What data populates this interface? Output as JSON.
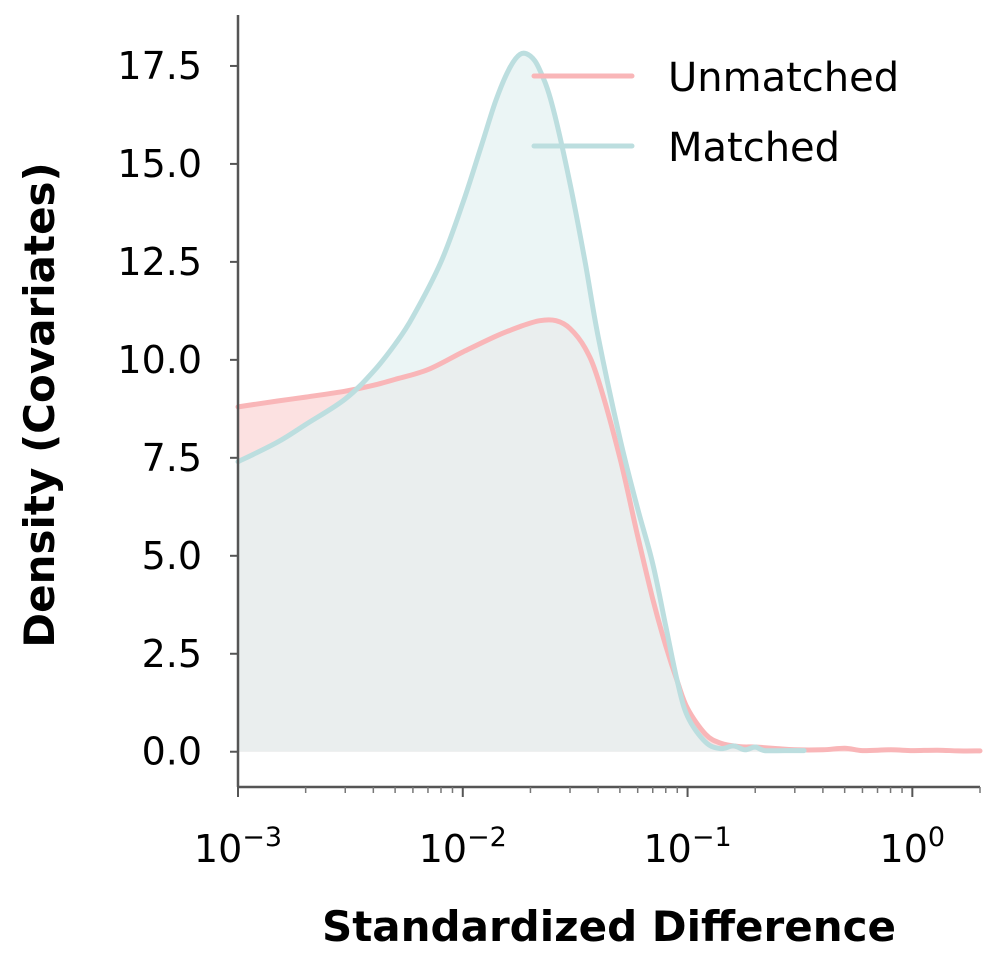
{
  "chart_data": {
    "type": "area",
    "xlabel": "Standardized Difference",
    "ylabel": "Density (Covariates)",
    "x_scale": "log",
    "xlim": [
      0.001,
      2.0
    ],
    "ylim": [
      -0.9,
      18.8
    ],
    "x_ticks": [
      {
        "value": 0.001,
        "base": "10",
        "exp": "−3"
      },
      {
        "value": 0.01,
        "base": "10",
        "exp": "−2"
      },
      {
        "value": 0.1,
        "base": "10",
        "exp": "−1"
      },
      {
        "value": 1,
        "base": "10",
        "exp": "0"
      }
    ],
    "y_ticks": [
      {
        "value": 0,
        "label": "0.0"
      },
      {
        "value": 2.5,
        "label": "2.5"
      },
      {
        "value": 5,
        "label": "5.0"
      },
      {
        "value": 7.5,
        "label": "7.5"
      },
      {
        "value": 10,
        "label": "10.0"
      },
      {
        "value": 12.5,
        "label": "12.5"
      },
      {
        "value": 15,
        "label": "15.0"
      },
      {
        "value": 17.5,
        "label": "17.5"
      }
    ],
    "grid": false,
    "legend_position": "top-right",
    "series": [
      {
        "name": "Unmatched",
        "color": "#f9b6b8",
        "fill_color": "#fbdcdc",
        "points": [
          [
            0.001,
            8.8
          ],
          [
            0.0015,
            8.95
          ],
          [
            0.002,
            9.05
          ],
          [
            0.003,
            9.2
          ],
          [
            0.004,
            9.35
          ],
          [
            0.005,
            9.5
          ],
          [
            0.007,
            9.75
          ],
          [
            0.01,
            10.2
          ],
          [
            0.014,
            10.6
          ],
          [
            0.018,
            10.85
          ],
          [
            0.022,
            11.0
          ],
          [
            0.026,
            11.0
          ],
          [
            0.03,
            10.8
          ],
          [
            0.035,
            10.3
          ],
          [
            0.04,
            9.5
          ],
          [
            0.05,
            7.5
          ],
          [
            0.06,
            5.5
          ],
          [
            0.07,
            3.9
          ],
          [
            0.08,
            2.7
          ],
          [
            0.09,
            1.8
          ],
          [
            0.1,
            1.1
          ],
          [
            0.12,
            0.45
          ],
          [
            0.14,
            0.22
          ],
          [
            0.17,
            0.13
          ],
          [
            0.2,
            0.12
          ],
          [
            0.25,
            0.08
          ],
          [
            0.3,
            0.05
          ],
          [
            0.4,
            0.05
          ],
          [
            0.5,
            0.09
          ],
          [
            0.6,
            0.03
          ],
          [
            0.8,
            0.05
          ],
          [
            1.0,
            0.03
          ],
          [
            1.3,
            0.04
          ],
          [
            1.6,
            0.02
          ],
          [
            2.0,
            0.02
          ]
        ]
      },
      {
        "name": "Matched",
        "color": "#bcdedf",
        "fill_color": "#e4f1f1",
        "points": [
          [
            0.001,
            7.4
          ],
          [
            0.0015,
            7.9
          ],
          [
            0.002,
            8.35
          ],
          [
            0.003,
            9.0
          ],
          [
            0.004,
            9.7
          ],
          [
            0.005,
            10.4
          ],
          [
            0.006,
            11.1
          ],
          [
            0.008,
            12.5
          ],
          [
            0.01,
            14.0
          ],
          [
            0.012,
            15.4
          ],
          [
            0.014,
            16.6
          ],
          [
            0.016,
            17.4
          ],
          [
            0.018,
            17.8
          ],
          [
            0.02,
            17.75
          ],
          [
            0.022,
            17.4
          ],
          [
            0.025,
            16.5
          ],
          [
            0.03,
            14.5
          ],
          [
            0.035,
            12.5
          ],
          [
            0.04,
            10.6
          ],
          [
            0.05,
            8.0
          ],
          [
            0.06,
            6.2
          ],
          [
            0.07,
            4.8
          ],
          [
            0.08,
            3.2
          ],
          [
            0.09,
            1.8
          ],
          [
            0.1,
            0.9
          ],
          [
            0.12,
            0.25
          ],
          [
            0.14,
            0.08
          ],
          [
            0.16,
            0.15
          ],
          [
            0.18,
            0.05
          ],
          [
            0.2,
            0.12
          ],
          [
            0.22,
            0.03
          ],
          [
            0.27,
            0.03
          ],
          [
            0.33,
            0.03
          ]
        ]
      }
    ]
  }
}
